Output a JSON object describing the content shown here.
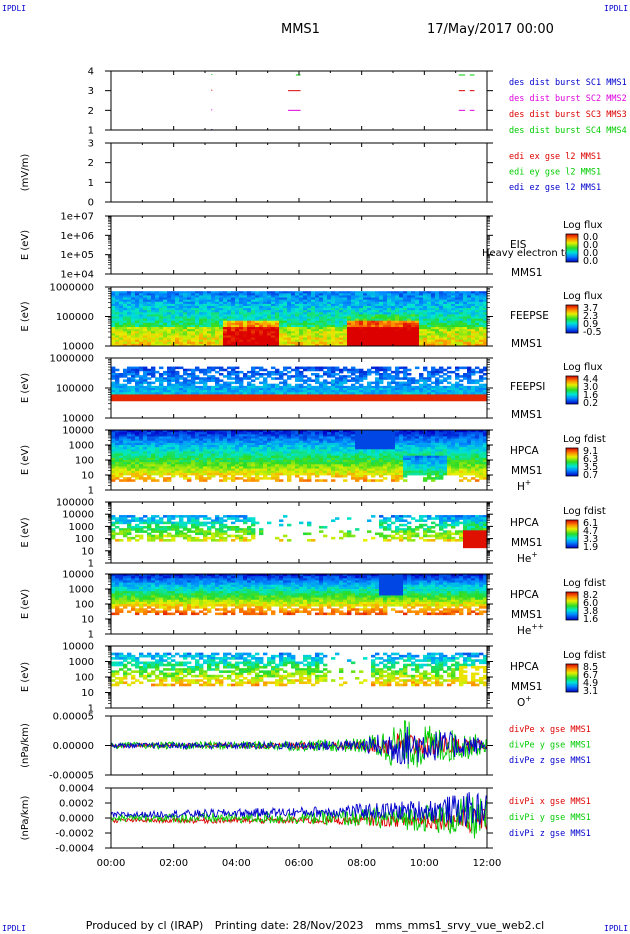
{
  "corner_label": "IPDLI",
  "header": {
    "spacecraft": "MMS1",
    "date": "17/May/2017 00:00"
  },
  "footer": {
    "produced_by": "Produced by cl (IRAP)",
    "printing_date": "Printing date: 28/Nov/2023",
    "script": "mms_mms1_srvy_vue_web2.cl"
  },
  "colors": {
    "blue": "#0000cc",
    "magenta": "#dd00dd",
    "red": "#dd0000",
    "green": "#00cc00"
  },
  "time_axis": {
    "start_hour": 0,
    "end_hour": 12,
    "tick_labels": [
      "00:00",
      "02:00",
      "04:00",
      "06:00",
      "08:00",
      "10:00",
      "12:00"
    ]
  },
  "panels": [
    {
      "id": "burst",
      "kind": "lines",
      "ylabel": "",
      "yticks": [
        "4",
        "3",
        "2",
        "1"
      ],
      "legend": [
        {
          "text": "des dist burst SC1 MMS1",
          "color": "#0000cc"
        },
        {
          "text": "des dist burst SC2 MMS2",
          "color": "#dd00dd"
        },
        {
          "text": "des dist burst SC3 MMS3",
          "color": "#dd0000"
        },
        {
          "text": "des dist burst SC4 MMS4",
          "color": "#00cc00"
        }
      ]
    },
    {
      "id": "edi",
      "kind": "lines",
      "ylabel": "(mV/m)",
      "yticks": [
        "3",
        "2",
        "1",
        "0"
      ],
      "legend": [
        {
          "text": "edi ex gse l2 MMS1",
          "color": "#dd0000"
        },
        {
          "text": "edi ey gse l2 MMS1",
          "color": "#00cc00"
        },
        {
          "text": "edi ez gse l2 MMS1",
          "color": "#0000cc"
        }
      ]
    },
    {
      "id": "eis",
      "kind": "spectrogram",
      "ylabel": "E (eV)",
      "yticks": [
        "1e+07",
        "1e+06",
        "1e+05",
        "1e+04"
      ],
      "right_labels": [
        "EIS",
        "MMS1"
      ],
      "overlay_text": "Heavy electron tof",
      "colorbar": {
        "title": "Log flux",
        "ticks": [
          "0.0",
          "0.0",
          "0.0",
          "0.0"
        ]
      }
    },
    {
      "id": "feeps_e",
      "kind": "spectrogram",
      "ylabel": "E (eV)",
      "yticks": [
        "1000000",
        "100000",
        "10000"
      ],
      "right_labels": [
        "FEEPSE",
        "MMS1"
      ],
      "colorbar": {
        "title": "Log flux",
        "ticks": [
          "3.7",
          "2.3",
          "0.9",
          "-0.5"
        ]
      }
    },
    {
      "id": "feeps_i",
      "kind": "spectrogram",
      "ylabel": "E (eV)",
      "yticks": [
        "1000000",
        "100000",
        "10000"
      ],
      "right_labels": [
        "FEEPSI",
        "MMS1"
      ],
      "colorbar": {
        "title": "Log flux",
        "ticks": [
          "4.4",
          "3.0",
          "1.6",
          "0.2"
        ]
      }
    },
    {
      "id": "hpca_h",
      "kind": "spectrogram",
      "ylabel": "E (eV)",
      "yticks": [
        "10000",
        "1000",
        "100",
        "10",
        "1"
      ],
      "right_labels": [
        "HPCA",
        "MMS1"
      ],
      "species": {
        "base": "H",
        "sup": "+"
      },
      "colorbar": {
        "title": "Log fdist",
        "ticks": [
          "9.1",
          "6.3",
          "3.5",
          "0.7"
        ]
      }
    },
    {
      "id": "hpca_he",
      "kind": "spectrogram",
      "ylabel": "E (eV)",
      "yticks": [
        "100000",
        "10000",
        "1000",
        "100",
        "10",
        "1"
      ],
      "right_labels": [
        "HPCA",
        "MMS1"
      ],
      "species": {
        "base": "He",
        "sup": "+"
      },
      "colorbar": {
        "title": "Log fdist",
        "ticks": [
          "6.1",
          "4.7",
          "3.3",
          "1.9"
        ]
      }
    },
    {
      "id": "hpca_he2",
      "kind": "spectrogram",
      "ylabel": "E (eV)",
      "yticks": [
        "10000",
        "1000",
        "100",
        "10",
        "1"
      ],
      "right_labels": [
        "HPCA",
        "MMS1"
      ],
      "species": {
        "base": "He",
        "sup": "++"
      },
      "colorbar": {
        "title": "Log fdist",
        "ticks": [
          "8.2",
          "6.0",
          "3.8",
          "1.6"
        ]
      }
    },
    {
      "id": "hpca_o",
      "kind": "spectrogram",
      "ylabel": "E (eV)",
      "yticks": [
        "10000",
        "1000",
        "100",
        "10",
        "1"
      ],
      "right_labels": [
        "HPCA",
        "MMS1"
      ],
      "species": {
        "base": "O",
        "sup": "+"
      },
      "colorbar": {
        "title": "Log fdist",
        "ticks": [
          "8.5",
          "6.7",
          "4.9",
          "3.1"
        ]
      }
    },
    {
      "id": "divpe",
      "kind": "lines",
      "ylabel": "(nPa/km)",
      "yticks": [
        "0.00005",
        "0.00000",
        "-0.00005"
      ],
      "legend": [
        {
          "text": "divPe x gse MMS1",
          "color": "#dd0000"
        },
        {
          "text": "divPe y gse MMS1",
          "color": "#00cc00"
        },
        {
          "text": "divPe z gse MMS1",
          "color": "#0000cc"
        }
      ]
    },
    {
      "id": "divpi",
      "kind": "lines",
      "ylabel": "(nPa/km)",
      "yticks": [
        "0.0004",
        "0.0002",
        "0.0000",
        "-0.0002",
        "-0.0004"
      ],
      "legend": [
        {
          "text": "divPi x gse MMS1",
          "color": "#dd0000"
        },
        {
          "text": "divPi y gse MMS1",
          "color": "#00cc00"
        },
        {
          "text": "divPi z gse MMS1",
          "color": "#0000cc"
        }
      ]
    }
  ],
  "chart_data": {
    "type": "line",
    "title": "MMS1 17/May/2017 00:00",
    "x_range_hours": [
      0,
      12
    ],
    "series": [
      {
        "name": "des dist burst SC1 MMS1",
        "y_level": 1,
        "intervals_hours": [
          [
            5.65,
            6.05
          ],
          [
            11.1,
            11.3
          ],
          [
            11.45,
            11.6
          ]
        ]
      },
      {
        "name": "des dist burst SC2 MMS2",
        "y_level": 2,
        "intervals_hours": [
          [
            5.65,
            6.05
          ],
          [
            11.1,
            11.3
          ],
          [
            11.45,
            11.6
          ]
        ]
      },
      {
        "name": "des dist burst SC3 MMS3",
        "y_level": 3,
        "intervals_hours": [
          [
            5.65,
            6.05
          ],
          [
            11.1,
            11.3
          ],
          [
            11.45,
            11.6
          ]
        ]
      },
      {
        "name": "des dist burst SC4 MMS4",
        "y_level": 4,
        "intervals_hours": [
          [
            5.9,
            6.05
          ],
          [
            11.1,
            11.3
          ],
          [
            11.45,
            11.6
          ]
        ]
      }
    ],
    "divPe_envelope_nPa_per_km": {
      "hours": [
        0,
        1,
        2,
        3,
        4,
        5,
        6,
        7,
        8,
        8.8,
        9.3,
        10,
        10.5,
        11,
        11.5,
        12
      ],
      "amplitude": [
        6e-06,
        6e-06,
        7e-06,
        8e-06,
        8e-06,
        9e-06,
        1e-05,
        1.2e-05,
        1.4e-05,
        3.5e-05,
        5e-05,
        4e-05,
        3.5e-05,
        3e-05,
        2.5e-05,
        1.2e-05
      ]
    },
    "divPi_envelope_nPa_per_km": {
      "hours": [
        0,
        1,
        2,
        3,
        4,
        5,
        6,
        7,
        8,
        9,
        10,
        11,
        11.5,
        12
      ],
      "amplitude": [
        5e-05,
        5e-05,
        6e-05,
        7e-05,
        7e-05,
        8e-05,
        8e-05,
        0.0001,
        0.00012,
        0.00015,
        0.00018,
        0.00025,
        0.0003,
        0.00025
      ]
    }
  }
}
